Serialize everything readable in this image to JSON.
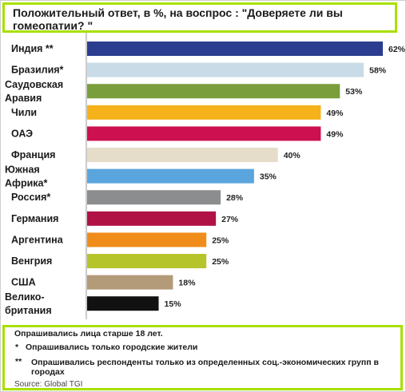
{
  "title": "Положительный ответ, в %, на воспрос : \"Доверяете ли вы гомеопатии? \"",
  "chart_data": {
    "type": "bar",
    "orientation": "horizontal",
    "title": "Положительный ответ, в %, на воспрос : \"Доверяете ли вы гомеопатии? \"",
    "xlim": [
      0,
      62
    ],
    "categories": [
      "Индия **",
      "Бразилия*",
      "Саудовская Аравия",
      "Чили",
      "ОАЭ",
      "Франция",
      "Южная Африка*",
      "Россия*",
      "Германия",
      "Аргентина",
      "Венгрия",
      "США",
      "Велико-британия"
    ],
    "values": [
      62,
      58,
      53,
      49,
      49,
      40,
      35,
      28,
      27,
      25,
      25,
      18,
      15
    ],
    "value_labels": [
      "62%",
      "58%",
      "53%",
      "49%",
      "49%",
      "40%",
      "35%",
      "28%",
      "27%",
      "25%",
      "25%",
      "18%",
      "15%"
    ],
    "colors": [
      "#2b3d8f",
      "#c9dbe6",
      "#7a9e3c",
      "#f6b21a",
      "#cc1050",
      "#e5ddca",
      "#5aa5dd",
      "#8b8d8e",
      "#b01245",
      "#f08c1a",
      "#b6c42c",
      "#b39a78",
      "#111111"
    ]
  },
  "footnotes": {
    "line1": "Опрашивались лица старше 18 лет.",
    "mark2": "*",
    "line2": "Опрашивались только городские жители",
    "mark3": "**",
    "line3": "Опрашивались респонденты только из определенных соц.-экономических групп в городах",
    "source": "Source: Global TGI"
  }
}
